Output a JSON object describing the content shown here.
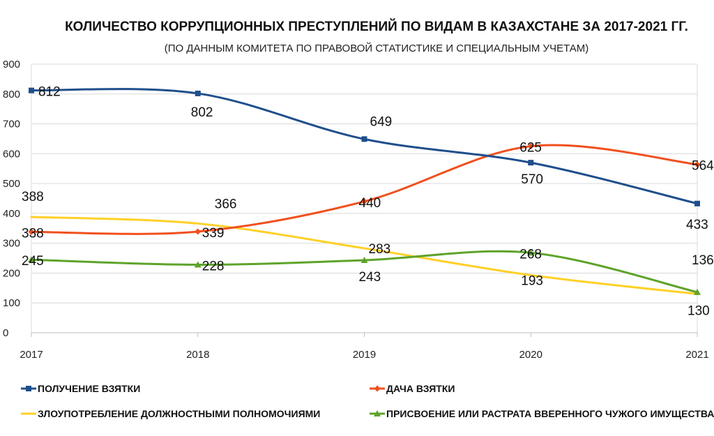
{
  "chart_data": {
    "type": "line",
    "title": "КОЛИЧЕСТВО КОРРУПЦИОННЫХ ПРЕСТУПЛЕНИЙ ПО ВИДАМ В КАЗАХСТАНЕ ЗА 2017-2021 ГГ.",
    "subtitle": "(ПО ДАННЫМ КОМИТЕТА ПО ПРАВОВОЙ СТАТИСТИКЕ И СПЕЦИАЛЬНЫМ УЧЕТАМ)",
    "categories": [
      "2017",
      "2018",
      "2019",
      "2020",
      "2021"
    ],
    "ylim": [
      0,
      900
    ],
    "yticks": [
      0,
      100,
      200,
      300,
      400,
      500,
      600,
      700,
      800,
      900
    ],
    "grid": true,
    "legend_position": "bottom",
    "series": [
      {
        "name": "ПОЛУЧЕНИЕ ВЗЯТКИ",
        "color": "#1f4e8c",
        "marker": "square",
        "values": [
          812,
          802,
          649,
          570,
          433
        ]
      },
      {
        "name": "ДАЧА ВЗЯТКИ",
        "color": "#f0501e",
        "marker": "diamond",
        "values": [
          338,
          339,
          440,
          625,
          564
        ]
      },
      {
        "name": "ЗЛОУПОТРЕБЛЕНИЕ ДОЛЖНОСТНЫМИ ПОЛНОМОЧИЯМИ",
        "color": "#ffd026",
        "marker": "none",
        "values": [
          388,
          366,
          283,
          193,
          130
        ]
      },
      {
        "name": "ПРИСВОЕНИЕ ИЛИ РАСТРАТА ВВЕРЕННОГО ЧУЖОГО ИМУЩЕСТВА",
        "color": "#5ea32a",
        "marker": "triangle",
        "values": [
          245,
          228,
          243,
          268,
          136
        ]
      }
    ]
  }
}
